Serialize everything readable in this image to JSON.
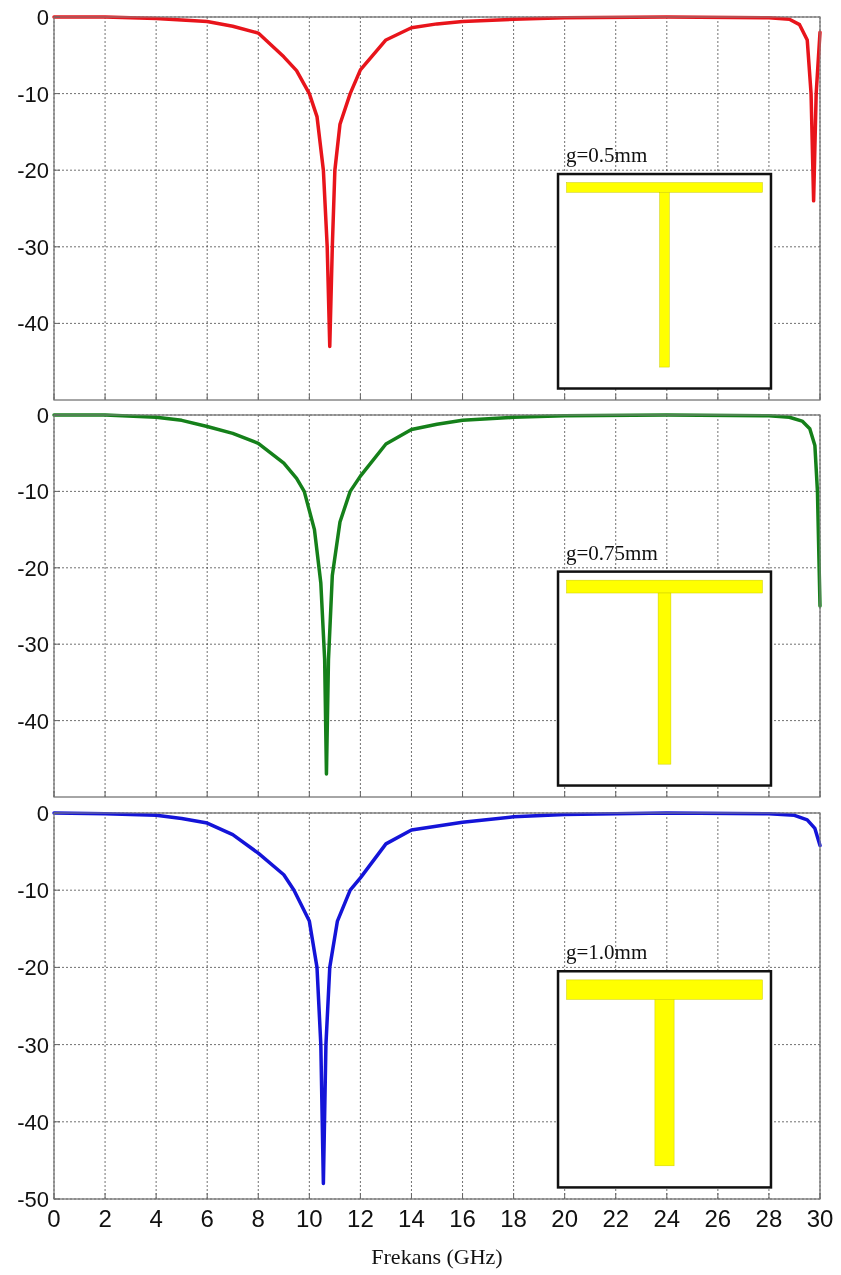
{
  "chart_data": [
    {
      "type": "line",
      "xlim": [
        0,
        30
      ],
      "xticks": [
        0,
        2,
        4,
        6,
        8,
        10,
        12,
        14,
        16,
        18,
        20,
        22,
        24,
        26,
        28,
        30
      ],
      "ylim": [
        -50,
        0
      ],
      "yticks": [
        -40,
        -30,
        -20,
        -10,
        0
      ],
      "grid": true,
      "tick_labels": "y",
      "annotations": [
        "g=0.5mm"
      ],
      "series": [
        {
          "color": "#e8141b",
          "x": [
            0,
            2,
            4,
            5,
            6,
            7,
            8,
            9,
            9.5,
            10,
            10.3,
            10.55,
            10.7,
            10.8,
            10.9,
            11,
            11.2,
            11.6,
            12,
            13,
            14,
            15,
            16,
            18,
            20,
            24,
            28,
            28.8,
            29.2,
            29.5,
            29.65,
            29.75,
            29.85,
            30
          ],
          "values": [
            0,
            0,
            -0.2,
            -0.4,
            -0.6,
            -1.2,
            -2.1,
            -5.2,
            -7,
            -10,
            -13,
            -20,
            -30,
            -43,
            -30,
            -20,
            -14,
            -10,
            -6.9,
            -3,
            -1.4,
            -0.9,
            -0.6,
            -0.3,
            -0.1,
            0,
            -0.1,
            -0.3,
            -1,
            -3,
            -10,
            -24,
            -10,
            -2
          ]
        }
      ]
    },
    {
      "type": "line",
      "xlim": [
        0,
        30
      ],
      "xticks": [
        0,
        2,
        4,
        6,
        8,
        10,
        12,
        14,
        16,
        18,
        20,
        22,
        24,
        26,
        28,
        30
      ],
      "ylim": [
        -50,
        0
      ],
      "yticks": [
        -40,
        -30,
        -20,
        -10,
        0
      ],
      "grid": true,
      "tick_labels": "y",
      "annotations": [
        "g=0.75mm"
      ],
      "series": [
        {
          "color": "#15801a",
          "x": [
            0,
            2,
            4,
            5,
            6,
            7,
            8,
            9,
            9.5,
            9.8,
            10.2,
            10.45,
            10.6,
            10.67,
            10.75,
            10.9,
            11.2,
            11.6,
            12,
            13,
            14,
            15,
            16,
            18,
            20,
            24,
            28,
            28.8,
            29.3,
            29.6,
            29.8,
            29.9,
            30
          ],
          "values": [
            0,
            0,
            -0.3,
            -0.7,
            -1.5,
            -2.4,
            -3.7,
            -6.3,
            -8.3,
            -10,
            -15,
            -22,
            -32,
            -47,
            -32,
            -21,
            -14,
            -10,
            -8,
            -3.8,
            -1.9,
            -1.2,
            -0.7,
            -0.3,
            -0.1,
            0,
            -0.1,
            -0.3,
            -0.8,
            -1.8,
            -4,
            -10,
            -25
          ]
        }
      ]
    },
    {
      "type": "line",
      "xlim": [
        0,
        30
      ],
      "xticks": [
        0,
        2,
        4,
        6,
        8,
        10,
        12,
        14,
        16,
        18,
        20,
        22,
        24,
        26,
        28,
        30
      ],
      "ylim": [
        -50,
        0
      ],
      "yticks": [
        -50,
        -40,
        -30,
        -20,
        -10,
        0
      ],
      "grid": true,
      "xlabel": "Frekans (GHz)",
      "annotations": [
        "g=1.0mm"
      ],
      "series": [
        {
          "color": "#1414d8",
          "x": [
            0,
            2,
            4,
            5,
            6,
            7,
            8,
            9,
            9.4,
            10,
            10.3,
            10.45,
            10.55,
            10.65,
            10.8,
            11.1,
            11.6,
            12,
            13,
            14,
            16,
            18,
            20,
            24,
            28,
            29,
            29.5,
            29.8,
            30
          ],
          "values": [
            0,
            -0.1,
            -0.3,
            -0.7,
            -1.3,
            -2.8,
            -5.2,
            -8,
            -10,
            -14,
            -20,
            -30,
            -48,
            -30,
            -20,
            -14,
            -10,
            -8.4,
            -4,
            -2.2,
            -1.2,
            -0.5,
            -0.2,
            0,
            -0.1,
            -0.3,
            -0.9,
            -2,
            -4.2
          ]
        }
      ]
    }
  ]
}
